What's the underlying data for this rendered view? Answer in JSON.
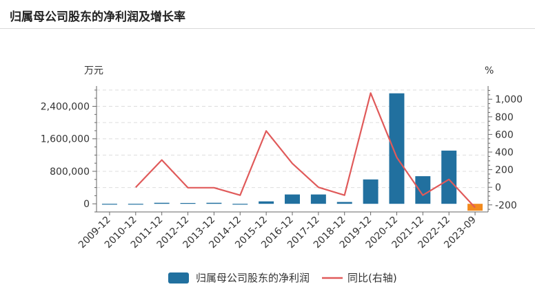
{
  "header": {
    "title": "归属母公司股东的净利润及增长率"
  },
  "chart_data": {
    "type": "bar",
    "title": "归属母公司股东的净利润及增长率",
    "categories": [
      "2009-12",
      "2010-12",
      "2011-12",
      "2012-12",
      "2013-12",
      "2014-12",
      "2015-12",
      "2016-12",
      "2017-12",
      "2018-12",
      "2019-12",
      "2020-12",
      "2021-12",
      "2022-12",
      "2023-09"
    ],
    "series": [
      {
        "name": "归属母公司股东的净利润",
        "type": "bar",
        "axis": "left",
        "values": [
          -8000,
          -5000,
          25000,
          20000,
          25000,
          -8000,
          60000,
          230000,
          230000,
          45000,
          600000,
          2720000,
          680000,
          1310000,
          -170000
        ]
      },
      {
        "name": "同比(右轴)",
        "type": "line",
        "axis": "right",
        "values": [
          null,
          0,
          310,
          -5,
          -5,
          -90,
          640,
          270,
          0,
          -90,
          1070,
          340,
          -90,
          90,
          -230
        ]
      }
    ],
    "left_axis": {
      "unit": "万元",
      "ylim": [
        -200000,
        2900000
      ],
      "ticks": [
        0,
        800000,
        1600000,
        2400000
      ],
      "tick_labels": [
        "0",
        "800,000",
        "1,600,000",
        "2,400,000"
      ]
    },
    "right_axis": {
      "unit": "%",
      "ylim": [
        -280,
        1150
      ],
      "ticks": [
        -200,
        0,
        200,
        400,
        600,
        800,
        1000
      ],
      "tick_labels": [
        "-200",
        "0",
        "200",
        "400",
        "600",
        "800",
        "1,000"
      ]
    },
    "colors": {
      "bar_positive": "#21709f",
      "bar_negative": "#f28a1e",
      "line": "#e05a5a",
      "grid": "#dddddd",
      "axis": "#666666"
    },
    "grid": true,
    "legend": "bottom"
  }
}
